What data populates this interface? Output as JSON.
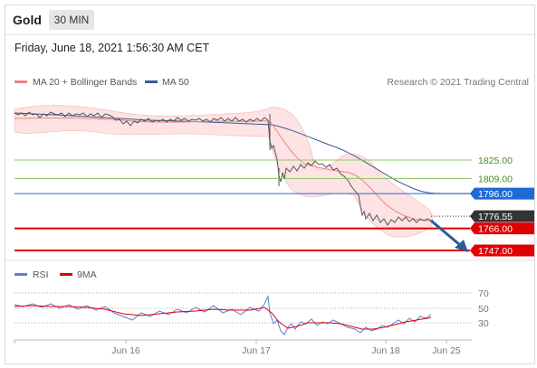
{
  "header": {
    "symbol": "Gold",
    "timeframe": "30 MIN",
    "datetime": "Friday, June 18, 2021 1:56:30 AM CET"
  },
  "legend": {
    "bollinger_label": "MA 20 + Bollinger Bands",
    "ma50_label": "MA 50",
    "research_credit": "Research © 2021 Trading Central",
    "rsi_label": "RSI",
    "ma9_label": "9MA"
  },
  "colors": {
    "candle": "#555555",
    "bollinger": "#f08080",
    "bollinger_fill": "#fde3e3",
    "ma50": "#3a5a9a",
    "resistance": "#8fc96a",
    "resistance_text": "#4a8a2a",
    "pivot": "#1e6bd6",
    "support": "#e00000",
    "current": "#333333",
    "arrow": "#2a5a9a",
    "rsi": "#5b7ed6",
    "rsi_ma": "#e00000"
  },
  "price_axis": {
    "levels": [
      {
        "kind": "resistance",
        "value": "1825.00"
      },
      {
        "kind": "resistance",
        "value": "1809.00"
      },
      {
        "kind": "pivot",
        "value": "1796.00"
      },
      {
        "kind": "current",
        "value": "1776.55"
      },
      {
        "kind": "support",
        "value": "1766.00"
      },
      {
        "kind": "support",
        "value": "1747.00"
      }
    ]
  },
  "rsi_axis": {
    "ticks": [
      "70",
      "50",
      "30"
    ]
  },
  "x_axis": {
    "labels": [
      "Jun 16",
      "Jun 17",
      "Jun 18",
      "Jun 25"
    ]
  }
}
